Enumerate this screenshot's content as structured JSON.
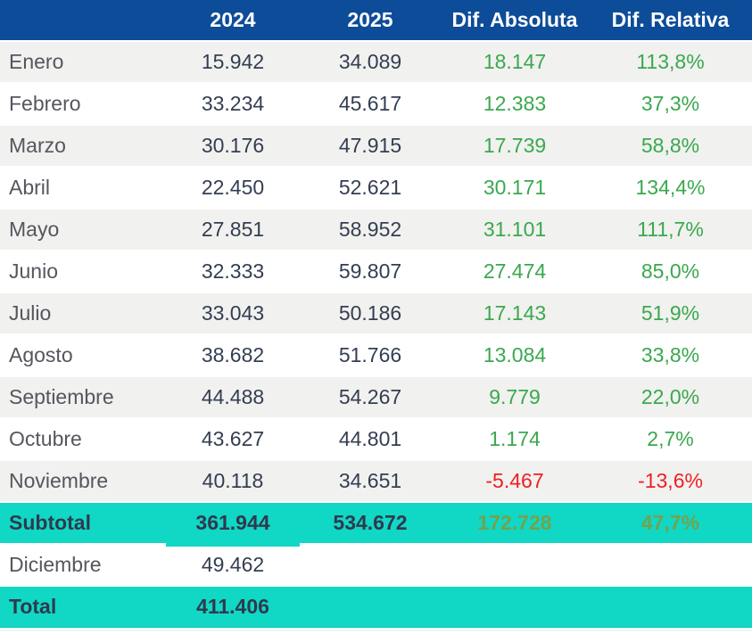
{
  "colors": {
    "header_blue": "#0d4c98",
    "accent_turquoise": "#11d7c5",
    "positive_green": "#3aa84e",
    "negative_red": "#ee2025",
    "subtotal_diff_green": "#74a24c",
    "stripe_gray": "#f1f1ef"
  },
  "chart_data": {
    "type": "table",
    "columns": [
      "",
      "2024",
      "2025",
      "Dif. Absoluta",
      "Dif. Relativa"
    ],
    "rows": [
      {
        "label": "Enero",
        "y2024": "15.942",
        "y2025": "34.089",
        "dif_abs": "18.147",
        "dif_rel": "113,8%",
        "trend": "positive"
      },
      {
        "label": "Febrero",
        "y2024": "33.234",
        "y2025": "45.617",
        "dif_abs": "12.383",
        "dif_rel": "37,3%",
        "trend": "positive"
      },
      {
        "label": "Marzo",
        "y2024": "30.176",
        "y2025": "47.915",
        "dif_abs": "17.739",
        "dif_rel": "58,8%",
        "trend": "positive"
      },
      {
        "label": "Abril",
        "y2024": "22.450",
        "y2025": "52.621",
        "dif_abs": "30.171",
        "dif_rel": "134,4%",
        "trend": "positive"
      },
      {
        "label": "Mayo",
        "y2024": "27.851",
        "y2025": "58.952",
        "dif_abs": "31.101",
        "dif_rel": "111,7%",
        "trend": "positive"
      },
      {
        "label": "Junio",
        "y2024": "32.333",
        "y2025": "59.807",
        "dif_abs": "27.474",
        "dif_rel": "85,0%",
        "trend": "positive"
      },
      {
        "label": "Julio",
        "y2024": "33.043",
        "y2025": "50.186",
        "dif_abs": "17.143",
        "dif_rel": "51,9%",
        "trend": "positive"
      },
      {
        "label": "Agosto",
        "y2024": "38.682",
        "y2025": "51.766",
        "dif_abs": "13.084",
        "dif_rel": "33,8%",
        "trend": "positive"
      },
      {
        "label": "Septiembre",
        "y2024": "44.488",
        "y2025": "54.267",
        "dif_abs": "9.779",
        "dif_rel": "22,0%",
        "trend": "positive"
      },
      {
        "label": "Octubre",
        "y2024": "43.627",
        "y2025": "44.801",
        "dif_abs": "1.174",
        "dif_rel": "2,7%",
        "trend": "positive"
      },
      {
        "label": "Noviembre",
        "y2024": "40.118",
        "y2025": "34.651",
        "dif_abs": "-5.467",
        "dif_rel": "-13,6%",
        "trend": "negative"
      }
    ],
    "subtotal": {
      "label": "Subtotal",
      "y2024": "361.944",
      "y2025": "534.672",
      "dif_abs": "172.728",
      "dif_rel": "47,7%"
    },
    "december": {
      "label": "Diciembre",
      "y2024": "49.462"
    },
    "total": {
      "label": "Total",
      "y2024": "411.406"
    }
  }
}
